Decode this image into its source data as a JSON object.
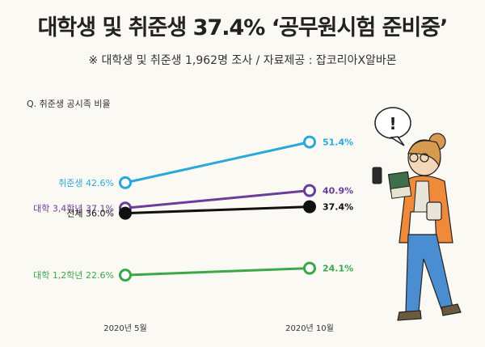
{
  "header": {
    "title": "대학생 및 취준생 37.4% ‘공무원시험 준비중’",
    "subtitle": "※ 대학생 및 취준생 1,962명 조사 / 자료제공 : 잡코리아X알바몬",
    "question": "Q. 취준생 공시족 비율"
  },
  "chart_data": {
    "type": "line",
    "title": "대학생 및 취준생 37.4% ‘공무원시험 준비중’",
    "categories": [
      "2020년 5월",
      "2020년 10월"
    ],
    "ylim": [
      20,
      55
    ],
    "grid": false,
    "series": [
      {
        "name": "취준생",
        "values": [
          42.6,
          51.4
        ],
        "start_label": "취준생 42.6%",
        "end_label": "51.4%",
        "color": "#2aa8db"
      },
      {
        "name": "대학 3,4학년",
        "values": [
          37.1,
          40.9
        ],
        "start_label": "대학 3,4학년 37.1%",
        "end_label": "40.9%",
        "color": "#6b3d9a"
      },
      {
        "name": "전체",
        "values": [
          36.0,
          37.4
        ],
        "start_label": "전체 36.0%",
        "end_label": "37.4%",
        "color": "#111111"
      },
      {
        "name": "대학 1,2학년",
        "values": [
          22.6,
          24.1
        ],
        "start_label": "대학 1,2학년 22.6%",
        "end_label": "24.1%",
        "color": "#3aa84a"
      }
    ]
  }
}
